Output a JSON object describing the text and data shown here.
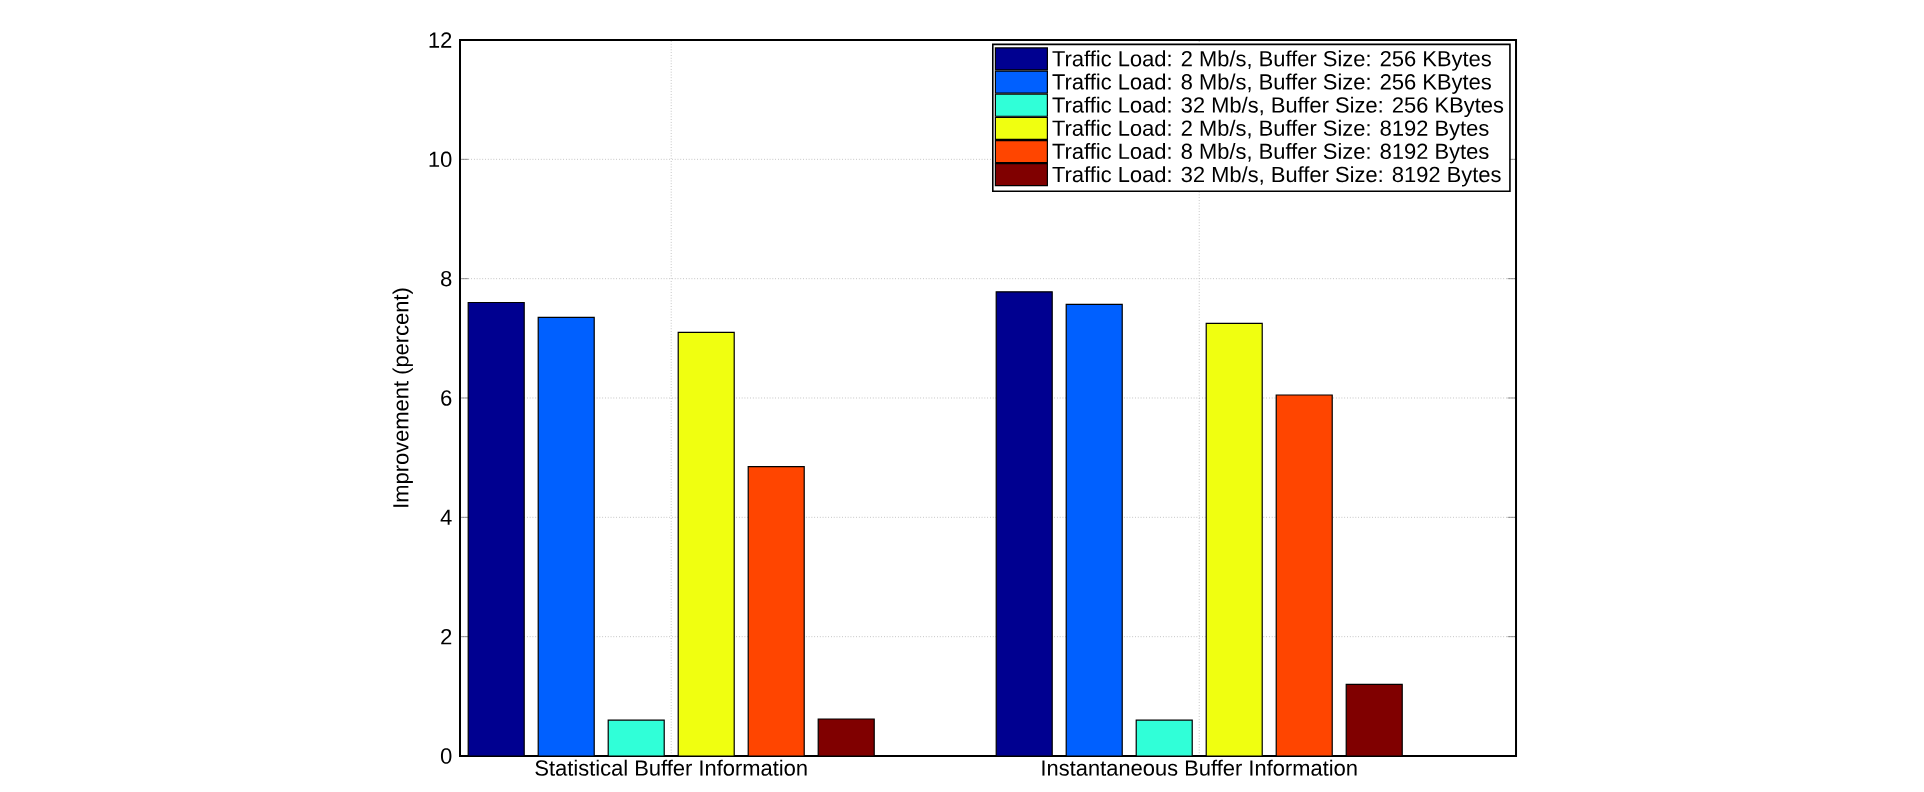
{
  "chart_data": {
    "type": "bar",
    "ylabel": "Improvement (percent)",
    "categories": [
      "Statistical Buffer Information",
      "Instantaneous Buffer Information"
    ],
    "series": [
      {
        "name": "Traffic Load: 2 Mb/s, Buffer Size: 256 KBytes",
        "color": "#000090",
        "values": [
          7.6,
          7.78
        ]
      },
      {
        "name": "Traffic Load: 8 Mb/s, Buffer Size: 256 KBytes",
        "color": "#0060ff",
        "values": [
          7.35,
          7.57
        ]
      },
      {
        "name": "Traffic Load: 32 Mb/s, Buffer Size: 256 KBytes",
        "color": "#30ffd8",
        "values": [
          0.6,
          0.6
        ]
      },
      {
        "name": "Traffic Load: 2 Mb/s, Buffer Size: 8192 Bytes",
        "color": "#f0ff10",
        "values": [
          7.1,
          7.25
        ]
      },
      {
        "name": "Traffic Load: 8 Mb/s, Buffer Size: 8192 Bytes",
        "color": "#ff4500",
        "values": [
          4.85,
          6.05
        ]
      },
      {
        "name": "Traffic Load: 32 Mb/s, Buffer Size: 8192 Bytes",
        "color": "#800000",
        "values": [
          0.62,
          1.2
        ]
      }
    ],
    "ylim": [
      0,
      12
    ],
    "yticks": [
      0,
      2,
      4,
      6,
      8,
      10,
      12
    ],
    "grid": true,
    "legend": "top right"
  }
}
